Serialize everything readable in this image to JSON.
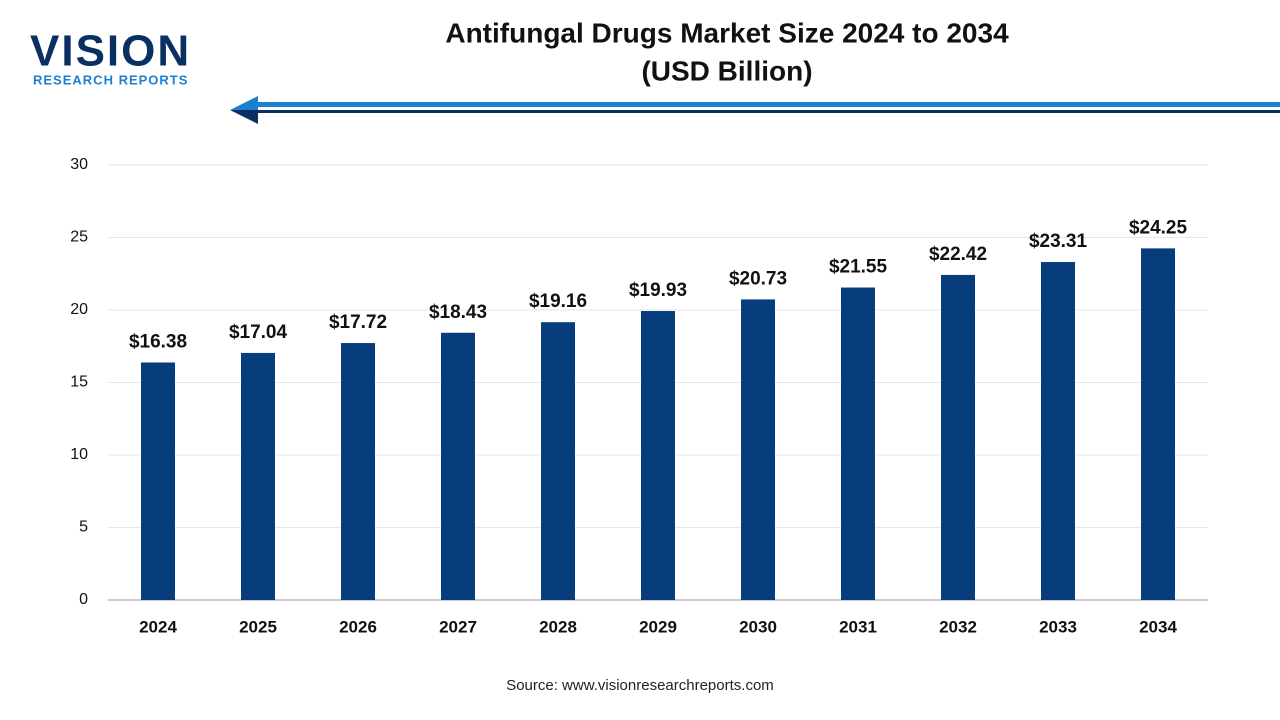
{
  "logo": {
    "name": "VISION",
    "tagline": "RESEARCH REPORTS"
  },
  "chart_data": {
    "type": "bar",
    "title": "Antifungal Drugs Market Size 2024 to 2034",
    "subtitle": "(USD Billion)",
    "categories": [
      "2024",
      "2025",
      "2026",
      "2027",
      "2028",
      "2029",
      "2030",
      "2031",
      "2032",
      "2033",
      "2034"
    ],
    "values": [
      16.38,
      17.04,
      17.72,
      18.43,
      19.16,
      19.93,
      20.73,
      21.55,
      22.42,
      23.31,
      24.25
    ],
    "value_labels": [
      "$16.38",
      "$17.04",
      "$17.72",
      "$18.43",
      "$19.16",
      "$19.93",
      "$20.73",
      "$21.55",
      "$22.42",
      "$23.31",
      "$24.25"
    ],
    "color": "#073d7c",
    "ylim": [
      0,
      30
    ],
    "yticks": [
      0,
      5,
      10,
      15,
      20,
      25,
      30
    ],
    "grid": true,
    "source": "Source: www.visionresearchreports.com"
  }
}
